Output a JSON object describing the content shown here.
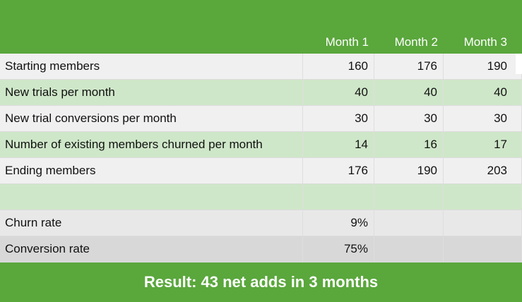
{
  "header": {
    "columns": [
      "Month 1",
      "Month 2",
      "Month 3"
    ]
  },
  "rows": [
    {
      "label": "Starting members",
      "values": [
        "160",
        "176",
        "190"
      ],
      "style": "gray"
    },
    {
      "label": "New trials per month",
      "values": [
        "40",
        "40",
        "40"
      ],
      "style": "green"
    },
    {
      "label": "New trial conversions per month",
      "values": [
        "30",
        "30",
        "30"
      ],
      "style": "gray"
    },
    {
      "label": "Number of existing members churned per month",
      "values": [
        "14",
        "16",
        "17"
      ],
      "style": "green"
    },
    {
      "label": "Ending members",
      "values": [
        "176",
        "190",
        "203"
      ],
      "style": "gray"
    },
    {
      "label": "",
      "values": [
        "",
        "",
        ""
      ],
      "style": "green"
    },
    {
      "label": "Churn rate",
      "values": [
        "9%",
        "",
        ""
      ],
      "style": "mid"
    },
    {
      "label": "Conversion rate",
      "values": [
        "75%",
        "",
        ""
      ],
      "style": "dark"
    }
  ],
  "footer": {
    "result": "Result: 43 net adds in 3 months"
  },
  "colors": {
    "brand": "#5aa73c",
    "row_green": "#cfe7c9",
    "row_gray": "#f0f0f0"
  }
}
